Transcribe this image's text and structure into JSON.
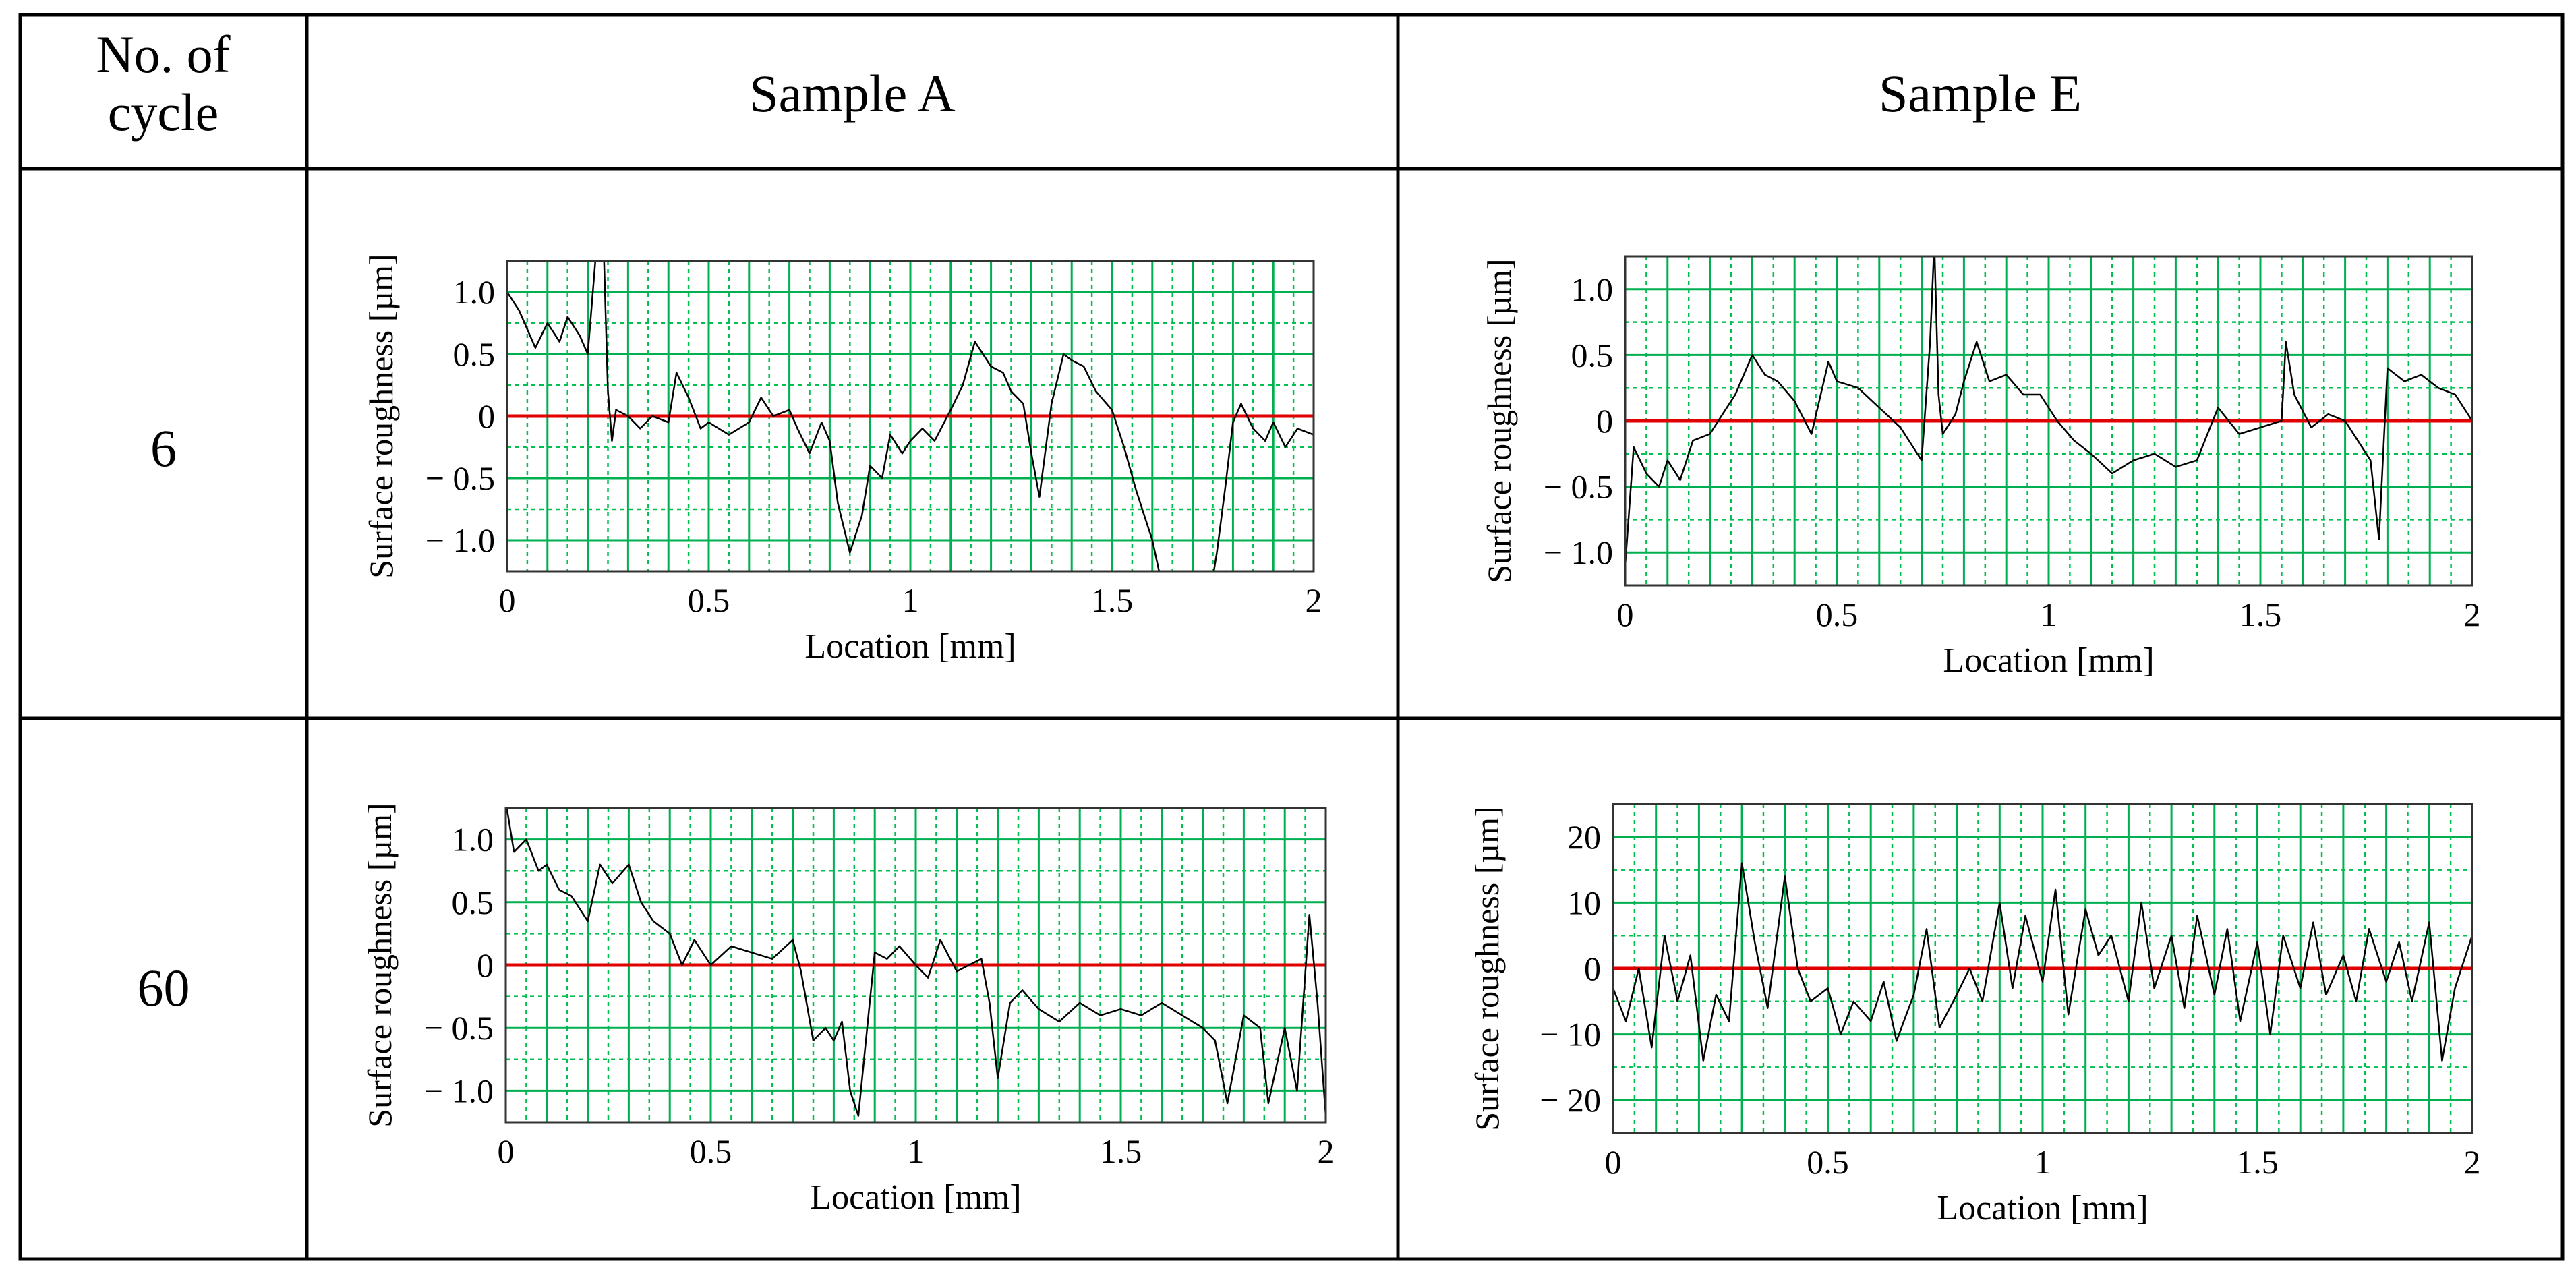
{
  "table": {
    "col_headers": [
      "No. of cycle",
      "Sample A",
      "Sample E"
    ],
    "rows": [
      {
        "label": "6"
      },
      {
        "label": "60"
      }
    ]
  },
  "colors": {
    "grid_major": "#00b050",
    "grid_minor": "#00c050",
    "zero_line": "#e00000",
    "trace": "#000000",
    "border": "#000000"
  },
  "chart_data": [
    {
      "type": "line",
      "cycle": "6",
      "sample": "Sample A",
      "xlabel": "Location [mm]",
      "ylabel": "Surface roughness [µm]",
      "xlim": [
        0,
        2
      ],
      "ylim": [
        -1.25,
        1.25
      ],
      "xticks": [
        "0",
        "0.5",
        "1",
        "1.5",
        "2"
      ],
      "yticks": [
        "1.0",
        "0.5",
        "0",
        "− 0.5",
        "− 1.0"
      ],
      "ytick_values": [
        1.0,
        0.5,
        0,
        -0.5,
        -1.0
      ],
      "series": [
        {
          "name": "profile",
          "x": [
            0,
            0.03,
            0.05,
            0.07,
            0.1,
            0.13,
            0.15,
            0.18,
            0.2,
            0.22,
            0.24,
            0.25,
            0.26,
            0.27,
            0.3,
            0.33,
            0.36,
            0.4,
            0.42,
            0.45,
            0.48,
            0.5,
            0.55,
            0.6,
            0.63,
            0.66,
            0.7,
            0.72,
            0.75,
            0.78,
            0.8,
            0.82,
            0.85,
            0.88,
            0.9,
            0.93,
            0.95,
            0.98,
            1.0,
            1.03,
            1.06,
            1.1,
            1.13,
            1.16,
            1.2,
            1.23,
            1.25,
            1.28,
            1.3,
            1.32,
            1.35,
            1.38,
            1.4,
            1.43,
            1.46,
            1.5,
            1.53,
            1.56,
            1.6,
            1.62,
            1.64,
            1.66,
            1.75,
            1.76,
            1.78,
            1.8,
            1.82,
            1.85,
            1.88,
            1.9,
            1.93,
            1.96,
            2.0
          ],
          "y": [
            1.0,
            0.85,
            0.7,
            0.55,
            0.75,
            0.6,
            0.8,
            0.65,
            0.5,
            1.3,
            1.3,
            0.2,
            -0.2,
            0.05,
            0.0,
            -0.1,
            0.0,
            -0.05,
            0.35,
            0.15,
            -0.1,
            -0.05,
            -0.15,
            -0.05,
            0.15,
            0.0,
            0.05,
            -0.1,
            -0.3,
            -0.05,
            -0.2,
            -0.7,
            -1.1,
            -0.8,
            -0.4,
            -0.5,
            -0.15,
            -0.3,
            -0.2,
            -0.1,
            -0.2,
            0.05,
            0.25,
            0.6,
            0.4,
            0.35,
            0.2,
            0.1,
            -0.3,
            -0.65,
            0.1,
            0.5,
            0.45,
            0.4,
            0.2,
            0.05,
            -0.25,
            -0.6,
            -1.0,
            -1.3,
            -1.3,
            -1.3,
            -1.3,
            -1.1,
            -0.6,
            -0.05,
            0.1,
            -0.1,
            -0.2,
            -0.05,
            -0.25,
            -0.1,
            -0.15
          ]
        }
      ]
    },
    {
      "type": "line",
      "cycle": "6",
      "sample": "Sample E",
      "xlabel": "Location [mm]",
      "ylabel": "Surface roughness [µm]",
      "xlim": [
        0,
        2
      ],
      "ylim": [
        -1.25,
        1.25
      ],
      "xticks": [
        "0",
        "0.5",
        "1",
        "1.5",
        "2"
      ],
      "yticks": [
        "1.0",
        "0.5",
        "0",
        "− 0.5",
        "− 1.0"
      ],
      "ytick_values": [
        1.0,
        0.5,
        0,
        -0.5,
        -1.0
      ],
      "series": [
        {
          "name": "profile",
          "x": [
            0,
            0.02,
            0.05,
            0.08,
            0.1,
            0.13,
            0.16,
            0.2,
            0.23,
            0.26,
            0.3,
            0.33,
            0.36,
            0.4,
            0.44,
            0.48,
            0.5,
            0.55,
            0.6,
            0.65,
            0.68,
            0.7,
            0.72,
            0.73,
            0.74,
            0.75,
            0.78,
            0.8,
            0.83,
            0.86,
            0.9,
            0.94,
            0.98,
            1.02,
            1.06,
            1.1,
            1.15,
            1.2,
            1.25,
            1.3,
            1.35,
            1.4,
            1.45,
            1.5,
            1.55,
            1.56,
            1.58,
            1.62,
            1.66,
            1.7,
            1.73,
            1.76,
            1.78,
            1.8,
            1.84,
            1.88,
            1.92,
            1.96,
            2.0
          ],
          "y": [
            -1.1,
            -0.2,
            -0.4,
            -0.5,
            -0.3,
            -0.45,
            -0.15,
            -0.1,
            0.05,
            0.2,
            0.5,
            0.35,
            0.3,
            0.15,
            -0.1,
            0.45,
            0.3,
            0.25,
            0.1,
            -0.05,
            -0.2,
            -0.3,
            0.6,
            1.35,
            0.2,
            -0.1,
            0.05,
            0.3,
            0.6,
            0.3,
            0.35,
            0.2,
            0.2,
            0.0,
            -0.15,
            -0.25,
            -0.4,
            -0.3,
            -0.25,
            -0.35,
            -0.3,
            0.1,
            -0.1,
            -0.05,
            0.0,
            0.6,
            0.2,
            -0.05,
            0.05,
            0.0,
            -0.15,
            -0.3,
            -0.9,
            0.4,
            0.3,
            0.35,
            0.25,
            0.2,
            0.0
          ]
        }
      ]
    },
    {
      "type": "line",
      "cycle": "60",
      "sample": "Sample A",
      "xlabel": "Location [mm]",
      "ylabel": "Surface roughness [µm]",
      "xlim": [
        0,
        2
      ],
      "ylim": [
        -1.25,
        1.25
      ],
      "xticks": [
        "0",
        "0.5",
        "1",
        "1.5",
        "2"
      ],
      "yticks": [
        "1.0",
        "0.5",
        "0",
        "− 0.5",
        "− 1.0"
      ],
      "ytick_values": [
        1.0,
        0.5,
        0,
        -0.5,
        -1.0
      ],
      "series": [
        {
          "name": "profile",
          "x": [
            0,
            0.02,
            0.05,
            0.08,
            0.1,
            0.13,
            0.16,
            0.2,
            0.23,
            0.26,
            0.3,
            0.33,
            0.36,
            0.4,
            0.43,
            0.46,
            0.5,
            0.55,
            0.6,
            0.65,
            0.7,
            0.72,
            0.75,
            0.78,
            0.8,
            0.82,
            0.84,
            0.86,
            0.88,
            0.9,
            0.93,
            0.96,
            1.0,
            1.03,
            1.06,
            1.1,
            1.13,
            1.16,
            1.18,
            1.2,
            1.23,
            1.26,
            1.3,
            1.35,
            1.4,
            1.45,
            1.5,
            1.55,
            1.6,
            1.65,
            1.7,
            1.73,
            1.76,
            1.8,
            1.84,
            1.86,
            1.9,
            1.93,
            1.96,
            1.98,
            2.0
          ],
          "y": [
            1.3,
            0.9,
            1.0,
            0.75,
            0.8,
            0.6,
            0.55,
            0.35,
            0.8,
            0.65,
            0.8,
            0.5,
            0.35,
            0.25,
            0.0,
            0.2,
            0.0,
            0.15,
            0.1,
            0.05,
            0.2,
            -0.05,
            -0.6,
            -0.5,
            -0.6,
            -0.45,
            -1.0,
            -1.2,
            -0.55,
            0.1,
            0.05,
            0.15,
            0.0,
            -0.1,
            0.2,
            -0.05,
            0.0,
            0.05,
            -0.3,
            -0.9,
            -0.3,
            -0.2,
            -0.35,
            -0.45,
            -0.3,
            -0.4,
            -0.35,
            -0.4,
            -0.3,
            -0.4,
            -0.5,
            -0.6,
            -1.1,
            -0.4,
            -0.5,
            -1.1,
            -0.5,
            -1.0,
            0.4,
            -0.3,
            -1.2
          ]
        }
      ]
    },
    {
      "type": "line",
      "cycle": "60",
      "sample": "Sample E",
      "xlabel": "Location [mm]",
      "ylabel": "Surface roughness [µm]",
      "xlim": [
        0,
        2
      ],
      "ylim": [
        -25,
        25
      ],
      "xticks": [
        "0",
        "0.5",
        "1",
        "1.5",
        "2"
      ],
      "yticks": [
        "20",
        "10",
        "0",
        "− 10",
        "− 20"
      ],
      "ytick_values": [
        20,
        10,
        0,
        -10,
        -20
      ],
      "series": [
        {
          "name": "profile",
          "x": [
            0,
            0.03,
            0.06,
            0.09,
            0.12,
            0.15,
            0.18,
            0.21,
            0.24,
            0.27,
            0.3,
            0.33,
            0.36,
            0.4,
            0.43,
            0.46,
            0.5,
            0.53,
            0.56,
            0.6,
            0.63,
            0.66,
            0.7,
            0.73,
            0.76,
            0.8,
            0.83,
            0.86,
            0.9,
            0.93,
            0.96,
            1.0,
            1.03,
            1.06,
            1.1,
            1.13,
            1.16,
            1.2,
            1.23,
            1.26,
            1.3,
            1.33,
            1.36,
            1.4,
            1.43,
            1.46,
            1.5,
            1.53,
            1.56,
            1.6,
            1.63,
            1.66,
            1.7,
            1.73,
            1.76,
            1.8,
            1.83,
            1.86,
            1.9,
            1.93,
            1.96,
            2.0
          ],
          "y": [
            -3,
            -8,
            0,
            -12,
            5,
            -5,
            2,
            -14,
            -4,
            -8,
            16,
            4,
            -6,
            14,
            0,
            -5,
            -3,
            -10,
            -5,
            -8,
            -2,
            -11,
            -4,
            6,
            -9,
            -4,
            0,
            -5,
            10,
            -3,
            8,
            -2,
            12,
            -7,
            9,
            2,
            5,
            -5,
            10,
            -3,
            5,
            -6,
            8,
            -4,
            6,
            -8,
            4,
            -10,
            5,
            -3,
            7,
            -4,
            2,
            -5,
            6,
            -2,
            4,
            -5,
            7,
            -14,
            -3,
            5
          ]
        }
      ]
    }
  ]
}
